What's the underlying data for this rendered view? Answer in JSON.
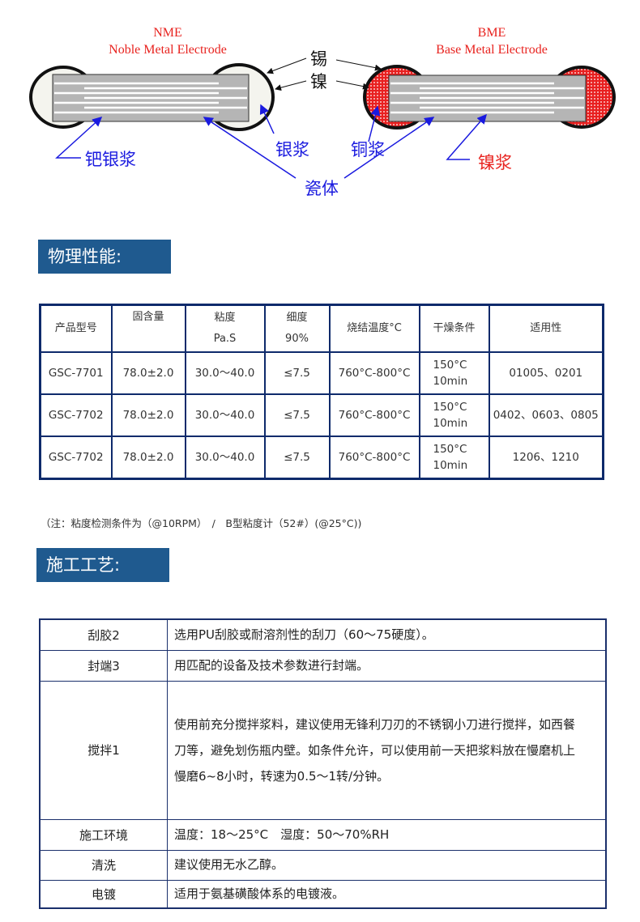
{
  "diagram": {
    "nme_title": "NME",
    "nme_sub": "Noble Metal Electrode",
    "bme_title": "BME",
    "bme_sub": "Base Metal Electrode",
    "tin": "锡",
    "nickel": "镍",
    "pd_ag_paste": "钯银浆",
    "ag_paste": "银浆",
    "cu_paste": "铜浆",
    "ni_paste": "镍浆",
    "ceramic": "瓷体",
    "colors": {
      "title": "#e8231f",
      "blue_label": "#1a1adf",
      "red_label": "#e8231f"
    }
  },
  "section1": {
    "title": "物理性能:"
  },
  "props_table": {
    "headers": [
      "产品型号",
      "固含量",
      [
        "粘度",
        "Pa.S"
      ],
      [
        "细度",
        "90%"
      ],
      "烧结温度°C",
      "干燥条件",
      "适用性"
    ],
    "rows": [
      [
        "GSC-7701",
        "78.0±2.0",
        "30.0～40.0",
        "≤7.5",
        "760°C-800°C",
        [
          "150°C",
          "10min"
        ],
        "01005、0201"
      ],
      [
        "GSC-7702",
        "78.0±2.0",
        "30.0～40.0",
        "≤7.5",
        "760°C-800°C",
        [
          "150°C",
          "10min"
        ],
        "0402、0603、0805"
      ],
      [
        "GSC-7702",
        "78.0±2.0",
        "30.0～40.0",
        "≤7.5",
        "760°C-800°C",
        [
          "150°C",
          "10min"
        ],
        "1206、1210"
      ]
    ]
  },
  "note": "（注：粘度检测条件为（@10RPM）　/　B型粘度计（52#）(@25°C))",
  "section2": {
    "title": "施工工艺:"
  },
  "process_table": [
    {
      "k": "刮胶2",
      "v": "选用PU刮胶或耐溶剂性的刮刀（60～75硬度）。"
    },
    {
      "k": "封端3",
      "v": "用匹配的设备及技术参数进行封端。"
    },
    {
      "k": "搅拌1",
      "v": "使用前充分搅拌浆料，建议使用无锋利刀刃的不锈钢小刀进行搅拌，如西餐刀等，避免划伤瓶内壁。如条件允许，可以使用前一天把浆料放在慢磨机上慢磨6~8小时，转速为0.5～1转/分钟。"
    },
    {
      "k": "施工环境",
      "v": "温度：18～25°C　湿度：50～70%RH"
    },
    {
      "k": "清洗",
      "v": "建议使用无水乙醇。"
    },
    {
      "k": "电镀",
      "v": "适用于氨基磺酸体系的电镀液。"
    }
  ]
}
